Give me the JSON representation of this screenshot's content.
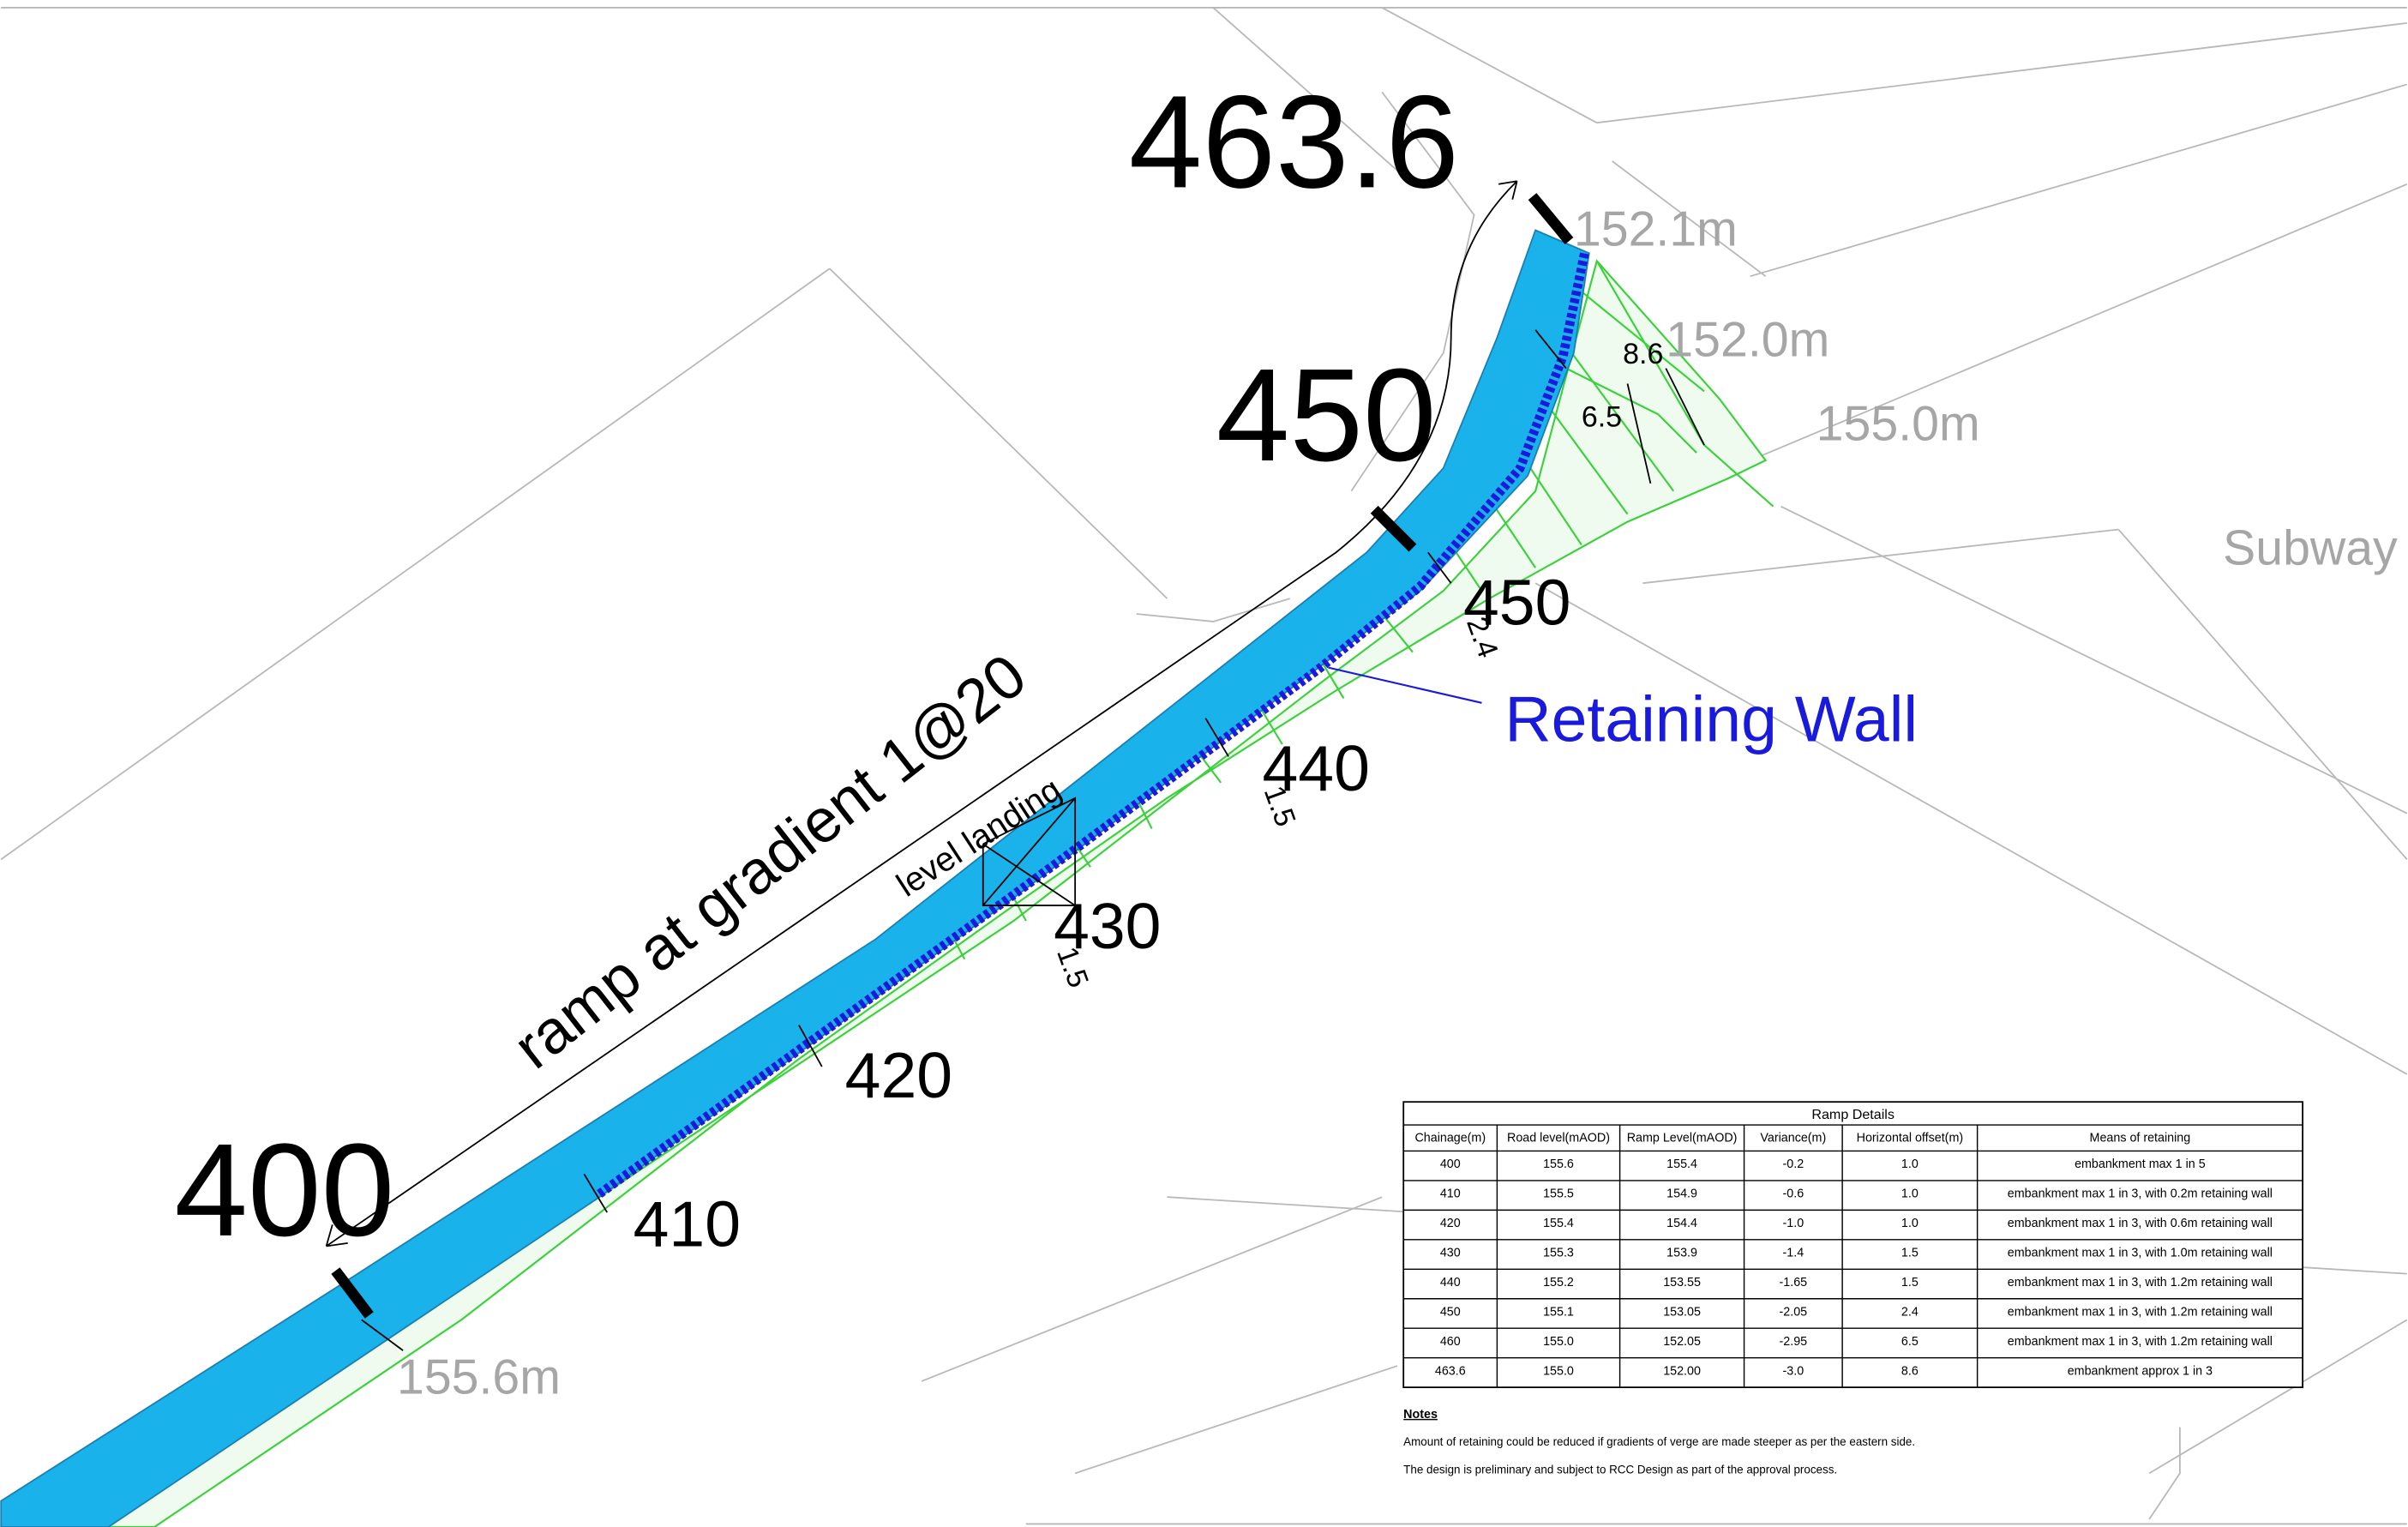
{
  "labels": {
    "chainage_start": "400",
    "chainage_mid": "450",
    "chainage_end": "463.6",
    "level_end": "152.1m",
    "level_a": "152.0m",
    "level_b": "155.0m",
    "level_start": "155.6m",
    "subway": "Subway",
    "ramp_note": "ramp at  gradient 1@20",
    "landing_note": "level landing",
    "retaining_wall": "Retaining Wall",
    "ch_410": "410",
    "ch_420": "420",
    "ch_430": "430",
    "ch_440": "440",
    "ch_450": "450",
    "off_430": "1.5",
    "off_440": "1.5",
    "off_450": "2.4",
    "off_460": "6.5",
    "off_463": "8.6"
  },
  "table": {
    "title": "Ramp Details",
    "columns": [
      "Chainage(m)",
      "Road level(mAOD)",
      "Ramp Level(mAOD)",
      "Variance(m)",
      "Horizontal offset(m)",
      "Means of retaining"
    ],
    "rows": [
      [
        "400",
        "155.6",
        "155.4",
        "-0.2",
        "1.0",
        "embankment max 1 in 5"
      ],
      [
        "410",
        "155.5",
        "154.9",
        "-0.6",
        "1.0",
        "embankment max 1 in 3, with 0.2m retaining wall"
      ],
      [
        "420",
        "155.4",
        "154.4",
        "-1.0",
        "1.0",
        "embankment max 1 in 3, with 0.6m retaining wall"
      ],
      [
        "430",
        "155.3",
        "153.9",
        "-1.4",
        "1.5",
        "embankment max 1 in 3, with 1.0m retaining wall"
      ],
      [
        "440",
        "155.2",
        "153.55",
        "-1.65",
        "1.5",
        "embankment max 1 in 3, with 1.2m retaining wall"
      ],
      [
        "450",
        "155.1",
        "153.05",
        "-2.05",
        "2.4",
        "embankment max 1 in 3, with 1.2m retaining wall"
      ],
      [
        "460",
        "155.0",
        "152.05",
        "-2.95",
        "6.5",
        "embankment max 1 in 3, with 1.2m retaining wall"
      ],
      [
        "463.6",
        "155.0",
        "152.00",
        "-3.0",
        "8.6",
        "embankment approx 1 in 3"
      ]
    ]
  },
  "notes": {
    "title": "Notes",
    "lines": [
      "Amount of retaining could be reduced if gradients of verge are made steeper as per the eastern side.",
      "The design is preliminary and subject to RCC Design as part of the approval process."
    ]
  }
}
